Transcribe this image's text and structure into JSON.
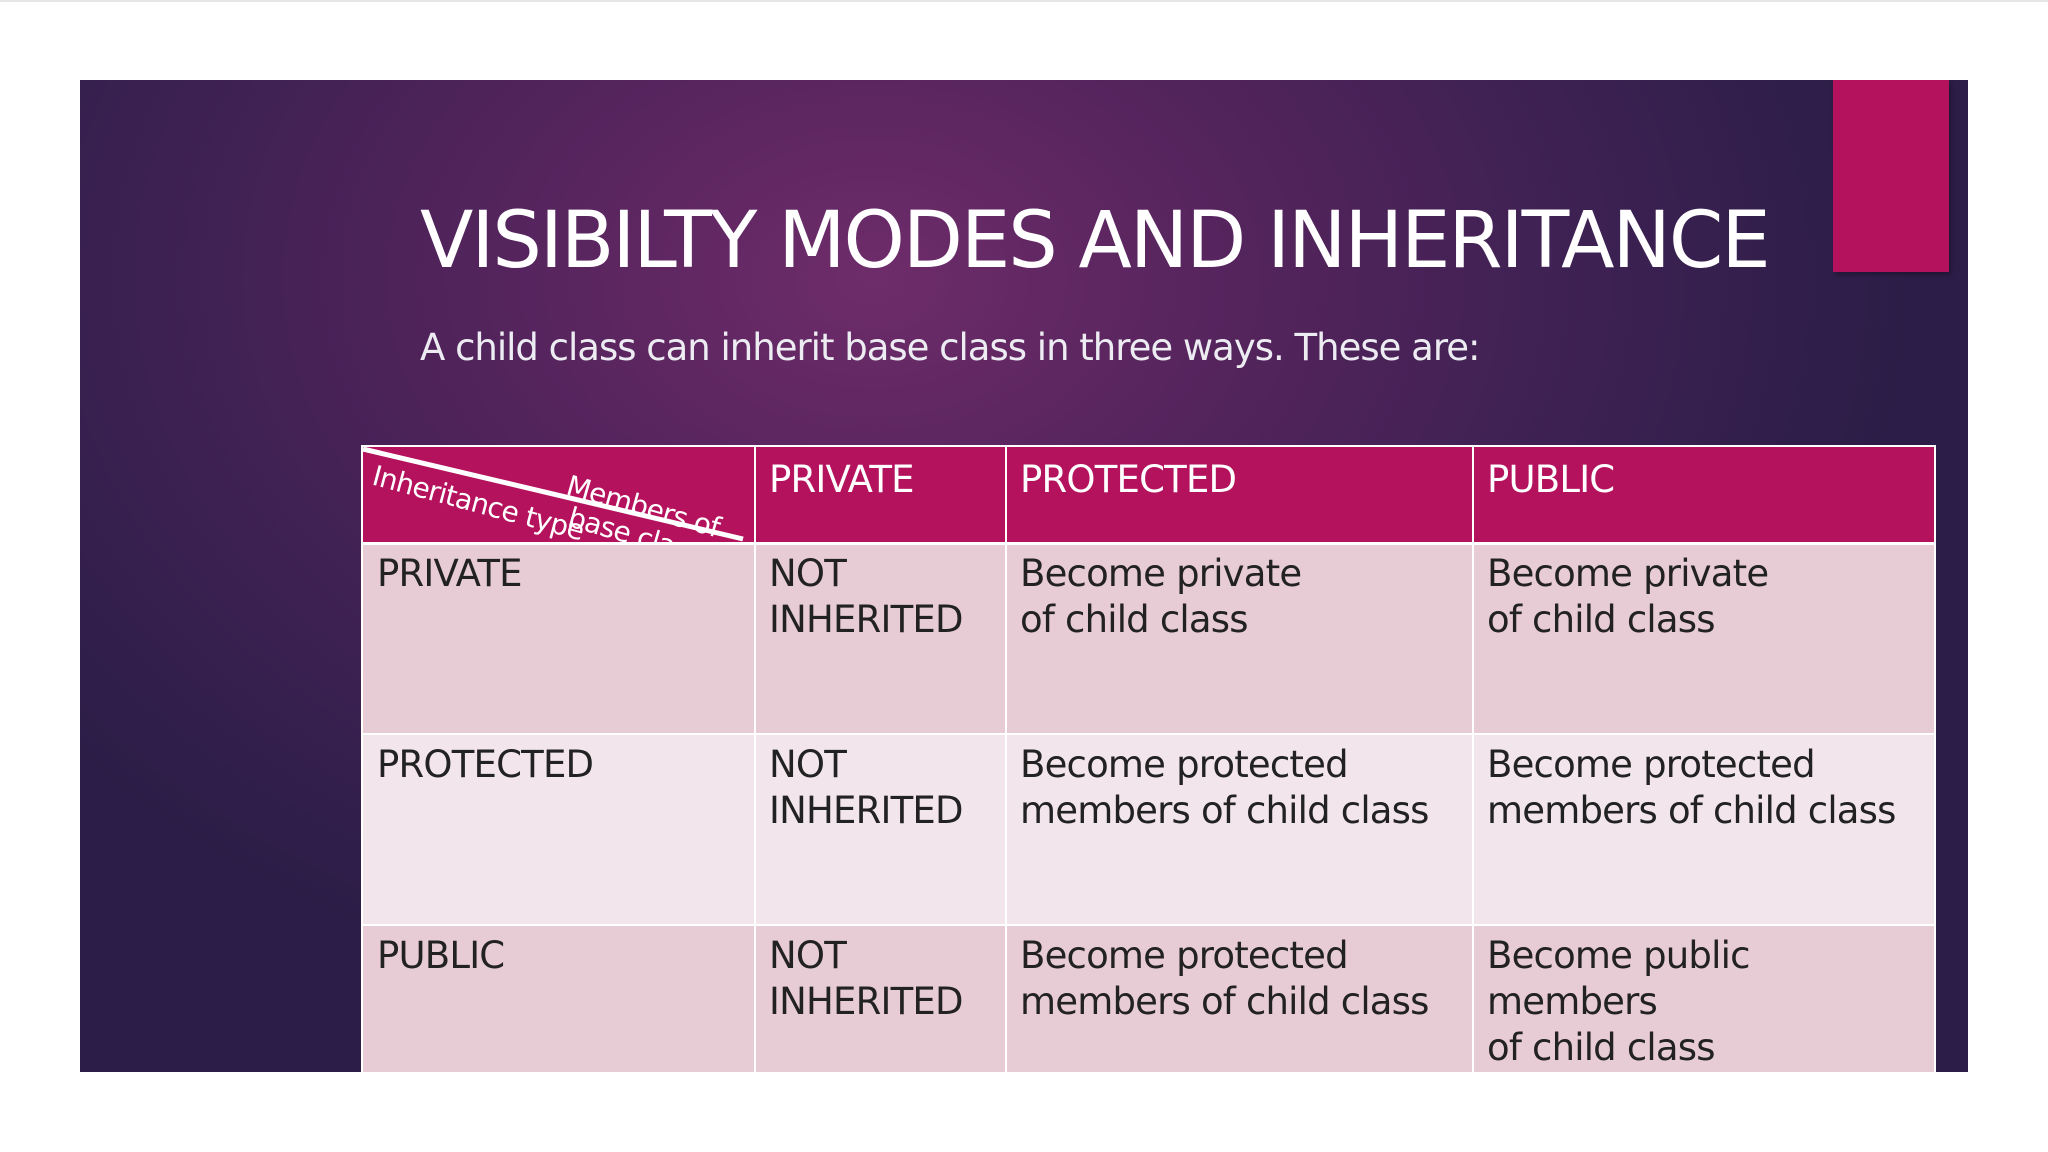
{
  "slide": {
    "title": "VISIBILTY MODES AND INHERITANCE",
    "subtitle": "A child class can inherit base class in three ways. These are:",
    "background_colors": [
      "#6e2c6a",
      "#2b1d47"
    ],
    "accent_color": "#b5125e"
  },
  "table": {
    "corner": {
      "top_label": "Members of\nbase class",
      "bottom_label": "Inheritance type"
    },
    "headers": [
      "PRIVATE",
      "PROTECTED",
      "PUBLIC"
    ],
    "rows": [
      {
        "label": "PRIVATE",
        "cells": [
          "NOT\nINHERITED",
          "Become private\nof child class",
          "Become private\nof child class"
        ]
      },
      {
        "label": "PROTECTED",
        "cells": [
          "NOT\nINHERITED",
          "Become protected\nmembers of child class",
          "Become protected\nmembers of child class"
        ]
      },
      {
        "label": "PUBLIC",
        "cells": [
          "NOT\nINHERITED",
          "Become protected\nmembers of child class",
          "Become public members\nof child class"
        ]
      }
    ],
    "header_color": "#b5125e",
    "row_colors": [
      "#e8ccd5",
      "#f2e6ec"
    ]
  }
}
